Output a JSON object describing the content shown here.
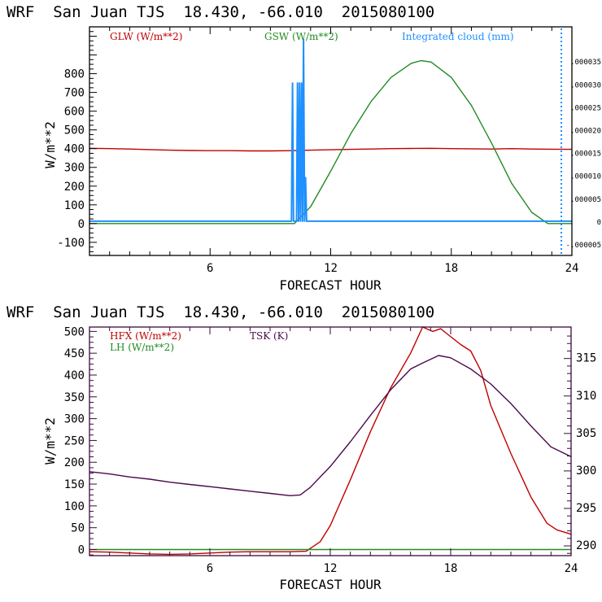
{
  "chart_data": [
    {
      "type": "line",
      "title": "WRF  San Juan TJS  18.430, -66.010  2015080100",
      "xlabel": "FORECAST HOUR",
      "ylabel": "W/m**2",
      "xlim": [
        0,
        24
      ],
      "ylim": [
        -170,
        1050
      ],
      "xticks": [
        6,
        12,
        18,
        24
      ],
      "xtick_labels": [
        "6",
        "12",
        "18",
        "24"
      ],
      "yticks": [
        -100,
        0,
        100,
        200,
        300,
        400,
        500,
        600,
        700,
        800
      ],
      "ytick_labels": [
        "-100",
        "0",
        "100",
        "200",
        "300",
        "400",
        "500",
        "600",
        "700",
        "800"
      ],
      "y2lim": [
        -7.5e-06,
        4.25e-05
      ],
      "y2ticks": [
        -5e-06,
        0,
        5e-06,
        1e-05,
        1.5e-05,
        2e-05,
        2.5e-05,
        3e-05,
        3.5e-05
      ],
      "y2tick_labels": [
        "-.000005",
        "0",
        ".000005",
        ".000010",
        ".000015",
        ".000020",
        ".000025",
        ".000030",
        ".000035"
      ],
      "series": [
        {
          "name": "GLW (W/m**2)",
          "color": "#c00000",
          "axis": "left",
          "x": [
            0,
            1,
            2,
            3,
            4,
            5,
            6,
            7,
            8,
            9,
            10,
            11,
            12,
            13,
            14,
            15,
            16,
            17,
            18,
            19,
            20,
            21,
            22,
            23,
            24
          ],
          "values": [
            402,
            400,
            398,
            395,
            392,
            390,
            389,
            389,
            388,
            388,
            389,
            392,
            394,
            396,
            398,
            400,
            401,
            402,
            400,
            399,
            398,
            400,
            398,
            397,
            396
          ]
        },
        {
          "name": "GSW (W/m**2)",
          "color": "#228b22",
          "axis": "left",
          "x": [
            0,
            10.2,
            11,
            12,
            13,
            14,
            15,
            16,
            16.5,
            17,
            18,
            19,
            20,
            21,
            22,
            22.8,
            24
          ],
          "values": [
            0,
            0,
            90,
            280,
            480,
            650,
            780,
            855,
            870,
            862,
            780,
            630,
            430,
            215,
            60,
            0,
            0
          ]
        },
        {
          "name": "Integrated cloud (mm)",
          "color": "#1e90ff",
          "axis": "right",
          "x": [
            0,
            10.05,
            10.1,
            10.15,
            10.3,
            10.35,
            10.4,
            10.45,
            10.5,
            10.55,
            10.6,
            10.65,
            10.7,
            10.75,
            10.8,
            10.85,
            10.9,
            24
          ],
          "values": [
            0,
            0,
            3.02e-05,
            0,
            0,
            3.02e-05,
            0,
            3.02e-05,
            0,
            3.02e-05,
            0,
            3.98e-05,
            0,
            9.5e-06,
            0,
            0,
            0,
            0
          ]
        }
      ]
    },
    {
      "type": "line",
      "title": "WRF  San Juan TJS  18.430, -66.010  2015080100",
      "xlabel": "FORECAST HOUR",
      "ylabel": "W/m**2",
      "xlim": [
        0,
        24
      ],
      "ylim": [
        -14,
        510
      ],
      "xticks": [
        6,
        12,
        18,
        24
      ],
      "xtick_labels": [
        "6",
        "12",
        "18",
        "24"
      ],
      "yticks": [
        0,
        50,
        100,
        150,
        200,
        250,
        300,
        350,
        400,
        450,
        500
      ],
      "ytick_labels": [
        "0",
        "50",
        "100",
        "150",
        "200",
        "250",
        "300",
        "350",
        "400",
        "450",
        "500"
      ],
      "y2lim": [
        288.7,
        319.2
      ],
      "y2ticks": [
        290,
        295,
        300,
        305,
        310,
        315
      ],
      "y2tick_labels": [
        "290",
        "295",
        "300",
        "305",
        "310",
        "315"
      ],
      "series": [
        {
          "name": "HFX (W/m**2)",
          "color": "#c00000",
          "axis": "left",
          "x": [
            0,
            1,
            2,
            3,
            4,
            5,
            6,
            7,
            8,
            9,
            10,
            10.8,
            11.5,
            12,
            13,
            14,
            15,
            16,
            16.6,
            17.1,
            17.5,
            17.8,
            18.5,
            19,
            19.5,
            20,
            21,
            22,
            22.8,
            23.3,
            24
          ],
          "values": [
            -5,
            -6,
            -8,
            -10,
            -11,
            -10,
            -8,
            -6,
            -5,
            -5,
            -5,
            -4,
            18,
            55,
            160,
            270,
            370,
            450,
            510,
            500,
            506,
            495,
            470,
            455,
            410,
            330,
            220,
            120,
            60,
            45,
            35
          ]
        },
        {
          "name": "LH (W/m**2)",
          "color": "#228b22",
          "axis": "left",
          "x": [
            0,
            24
          ],
          "values": [
            0,
            0
          ]
        },
        {
          "name": "TSK (K)",
          "color": "#4b0a4b",
          "axis": "right",
          "x": [
            0,
            1,
            2,
            3,
            4,
            5,
            6,
            7,
            8,
            9,
            10,
            10.5,
            11,
            12,
            13,
            14,
            15,
            16,
            16.6,
            17.4,
            18,
            19,
            20,
            21,
            22,
            23,
            24
          ],
          "values": [
            299.9,
            299.6,
            299.2,
            298.9,
            298.5,
            298.2,
            297.9,
            297.6,
            297.3,
            297.0,
            296.7,
            296.8,
            297.8,
            300.6,
            303.9,
            307.4,
            310.8,
            313.6,
            314.4,
            315.4,
            315.1,
            313.6,
            311.6,
            309.0,
            306.0,
            303.2,
            301.9
          ]
        }
      ]
    }
  ]
}
